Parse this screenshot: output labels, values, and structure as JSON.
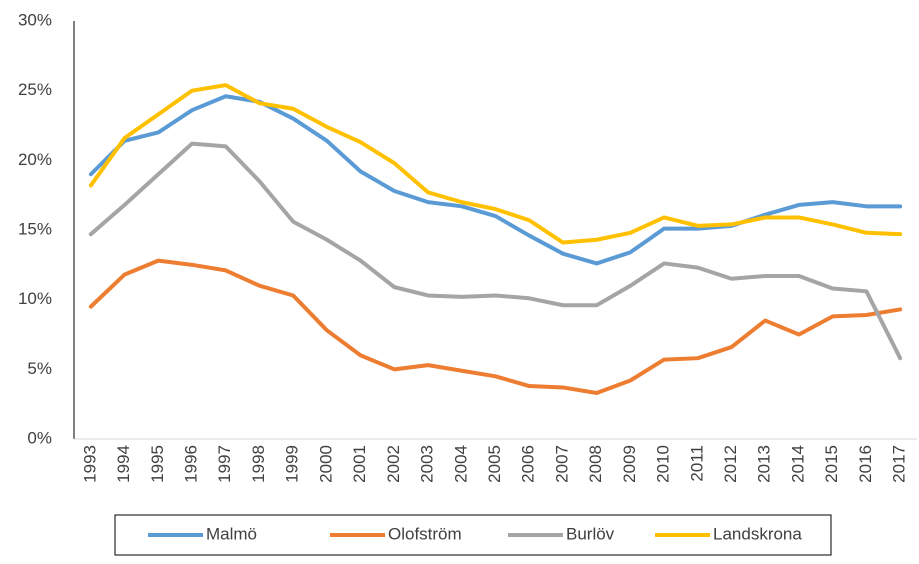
{
  "chart_data": {
    "type": "line",
    "categories": [
      "1993",
      "1994",
      "1995",
      "1996",
      "1997",
      "1998",
      "1999",
      "2000",
      "2001",
      "2002",
      "2003",
      "2004",
      "2005",
      "2006",
      "2007",
      "2008",
      "2009",
      "2010",
      "2011",
      "2012",
      "2013",
      "2014",
      "2015",
      "2016",
      "2017"
    ],
    "series": [
      {
        "name": "Malmö",
        "color": "#5b9bd5",
        "values": [
          19.0,
          21.4,
          22.0,
          23.6,
          24.6,
          24.2,
          23.0,
          21.4,
          19.2,
          17.8,
          17.0,
          16.7,
          16.0,
          14.6,
          13.3,
          12.6,
          13.4,
          15.1,
          15.1,
          15.3,
          16.1,
          16.8,
          17.0,
          16.7,
          16.7
        ]
      },
      {
        "name": "Olofström",
        "color": "#ed7d31",
        "values": [
          9.5,
          11.8,
          12.8,
          12.5,
          12.1,
          11.0,
          10.3,
          7.8,
          6.0,
          5.0,
          5.3,
          4.9,
          4.5,
          3.8,
          3.7,
          3.3,
          4.2,
          5.7,
          5.8,
          6.6,
          8.5,
          7.5,
          8.8,
          8.9,
          9.3
        ]
      },
      {
        "name": "Burlöv",
        "color": "#a5a5a5",
        "values": [
          14.7,
          16.8,
          19.0,
          21.2,
          21.0,
          18.5,
          15.6,
          14.3,
          12.8,
          10.9,
          10.3,
          10.2,
          10.3,
          10.1,
          9.6,
          9.6,
          11.0,
          12.6,
          12.3,
          11.5,
          11.7,
          11.7,
          10.8,
          10.6,
          5.8
        ]
      },
      {
        "name": "Landskrona",
        "color": "#ffc000",
        "values": [
          18.2,
          21.6,
          23.3,
          25.0,
          25.4,
          24.1,
          23.7,
          22.4,
          21.3,
          19.8,
          17.7,
          17.0,
          16.5,
          15.7,
          14.1,
          14.3,
          14.8,
          15.9,
          15.3,
          15.4,
          15.9,
          15.9,
          15.4,
          14.8,
          14.7
        ]
      }
    ],
    "ylim": [
      0,
      30
    ],
    "yticks": [
      {
        "value": 0,
        "label": "0%"
      },
      {
        "value": 5,
        "label": "5%"
      },
      {
        "value": 10,
        "label": "10%"
      },
      {
        "value": 15,
        "label": "15%"
      },
      {
        "value": 20,
        "label": "20%"
      },
      {
        "value": 25,
        "label": "25%"
      },
      {
        "value": 30,
        "label": "30%"
      }
    ],
    "grid": false,
    "legend": "bottom"
  }
}
